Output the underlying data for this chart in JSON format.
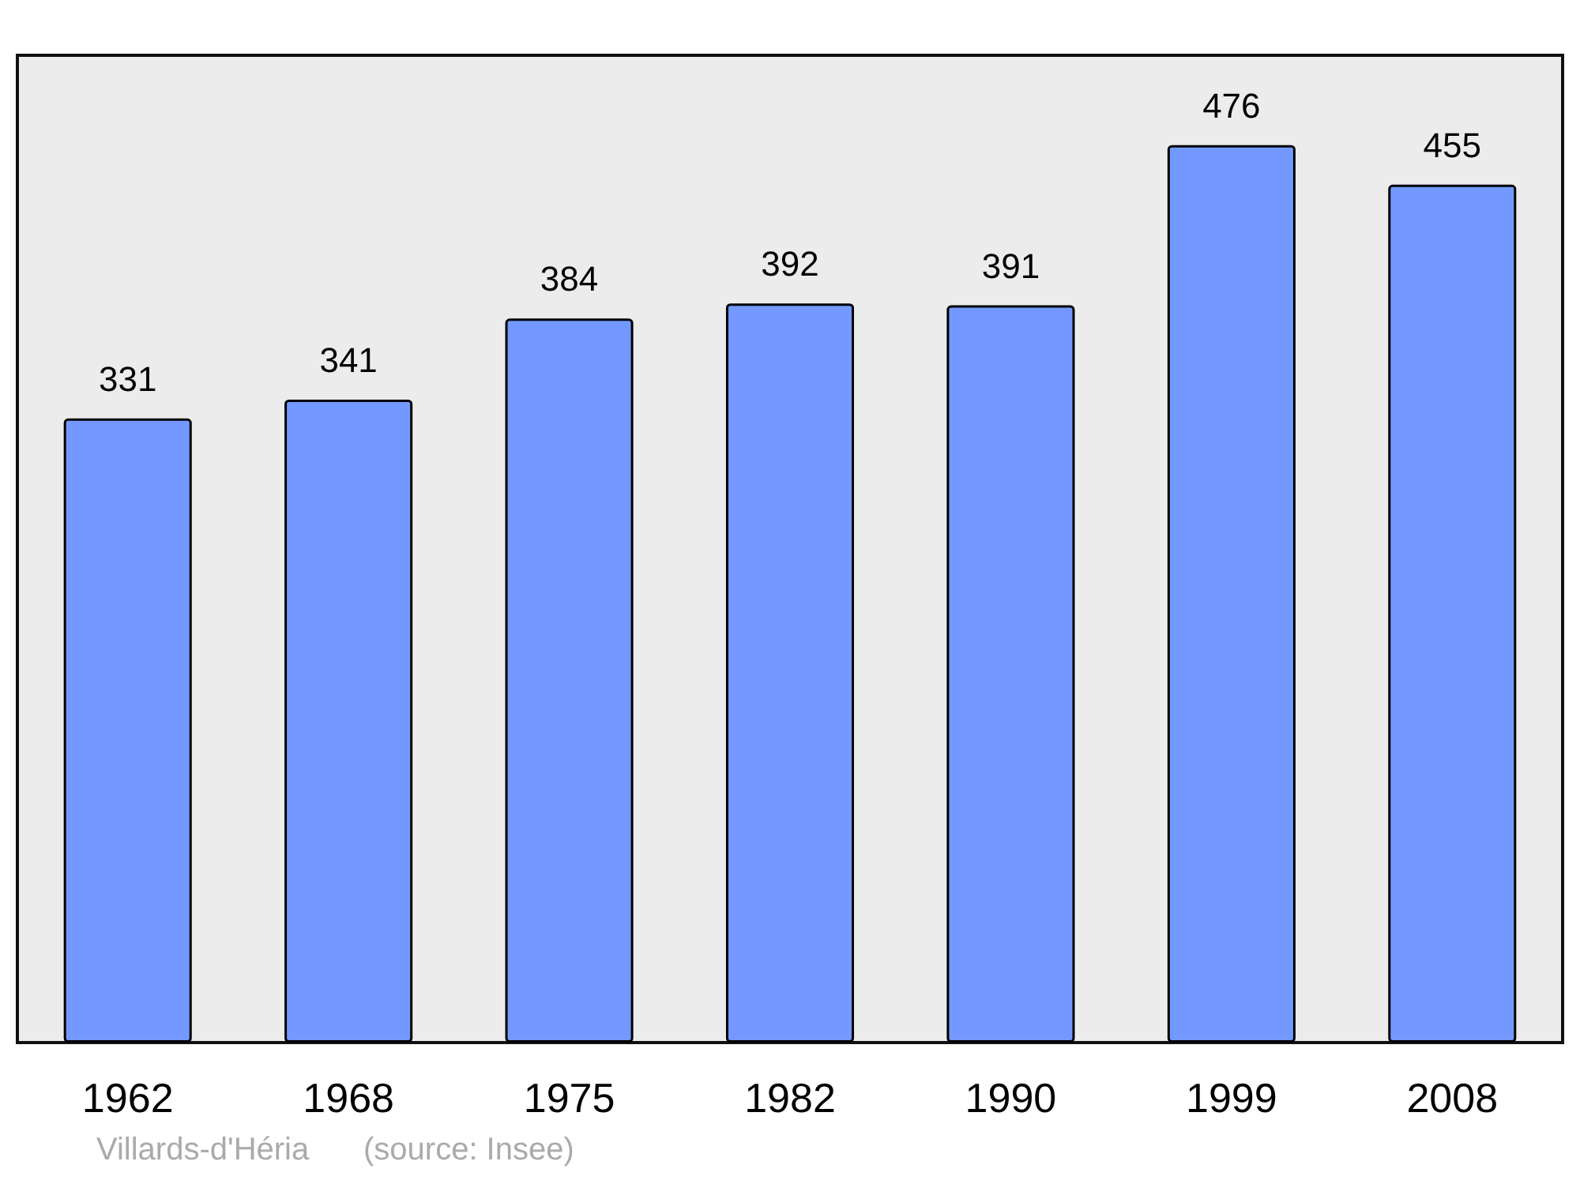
{
  "chart_data": {
    "type": "bar",
    "categories": [
      "1962",
      "1968",
      "1975",
      "1982",
      "1990",
      "1999",
      "2008"
    ],
    "values": [
      331,
      341,
      384,
      392,
      391,
      476,
      455
    ],
    "color": "#7398ff",
    "data_labels": true,
    "annotations": [
      "Villards-d'Héria",
      "(source: Insee)"
    ]
  }
}
